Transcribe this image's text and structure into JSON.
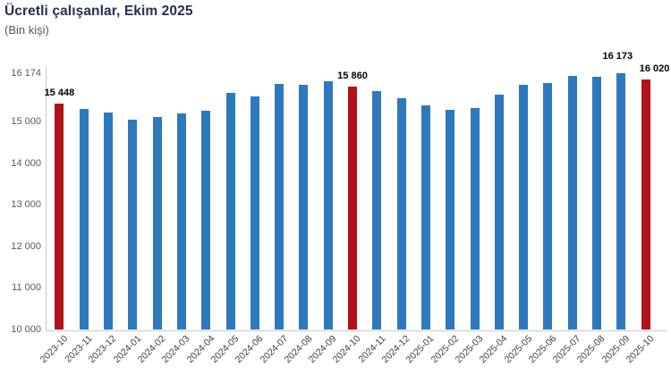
{
  "chart_data": {
    "type": "bar",
    "title": "Ücretli çalışanlar, Ekim 2025",
    "subtitle": "(Bin kişi)",
    "xlabel": "",
    "ylabel": "",
    "ylim": [
      10000,
      16174
    ],
    "grid": false,
    "legend": "none",
    "colors": {
      "bar_default": "#2e79be",
      "bar_highlight": "#b11218",
      "title_text": "#253050",
      "subtitle_text": "#595959",
      "y_tick_text": "#595959",
      "x_tick_text": "#3d3d3d",
      "data_label_text": "#000000",
      "axis_line": "#c9c9c9"
    },
    "y_ticks": [
      {
        "value": 16174,
        "label": "16 174"
      },
      {
        "value": 15000,
        "label": "15 000"
      },
      {
        "value": 14000,
        "label": "14 000"
      },
      {
        "value": 13000,
        "label": "13 000"
      },
      {
        "value": 12000,
        "label": "12 000"
      },
      {
        "value": 11000,
        "label": "11 000"
      },
      {
        "value": 10000,
        "label": "10 000"
      }
    ],
    "points": [
      {
        "category": "2023-10",
        "value": 15448,
        "highlight": true,
        "data_label": "15 448"
      },
      {
        "category": "2023-11",
        "value": 15320,
        "highlight": false
      },
      {
        "category": "2023-12",
        "value": 15235,
        "highlight": false
      },
      {
        "category": "2024-01",
        "value": 15050,
        "highlight": false
      },
      {
        "category": "2024-02",
        "value": 15120,
        "highlight": false
      },
      {
        "category": "2024-03",
        "value": 15215,
        "highlight": false
      },
      {
        "category": "2024-04",
        "value": 15280,
        "highlight": false
      },
      {
        "category": "2024-05",
        "value": 15700,
        "highlight": false
      },
      {
        "category": "2024-06",
        "value": 15610,
        "highlight": false
      },
      {
        "category": "2024-07",
        "value": 15920,
        "highlight": false
      },
      {
        "category": "2024-08",
        "value": 15905,
        "highlight": false
      },
      {
        "category": "2024-09",
        "value": 15980,
        "highlight": false
      },
      {
        "category": "2024-10",
        "value": 15860,
        "highlight": true,
        "data_label": "15 860"
      },
      {
        "category": "2024-11",
        "value": 15740,
        "highlight": false
      },
      {
        "category": "2024-12",
        "value": 15570,
        "highlight": false
      },
      {
        "category": "2025-01",
        "value": 15410,
        "highlight": false
      },
      {
        "category": "2025-02",
        "value": 15300,
        "highlight": false
      },
      {
        "category": "2025-03",
        "value": 15340,
        "highlight": false
      },
      {
        "category": "2025-04",
        "value": 15665,
        "highlight": false
      },
      {
        "category": "2025-05",
        "value": 15905,
        "highlight": false
      },
      {
        "category": "2025-06",
        "value": 15945,
        "highlight": false
      },
      {
        "category": "2025-07",
        "value": 16120,
        "highlight": false
      },
      {
        "category": "2025-08",
        "value": 16085,
        "highlight": false
      },
      {
        "category": "2025-09",
        "value": 16173,
        "highlight": false,
        "data_label": "16 173"
      },
      {
        "category": "2025-10",
        "value": 16020,
        "highlight": true,
        "data_label": "16 020"
      }
    ]
  }
}
